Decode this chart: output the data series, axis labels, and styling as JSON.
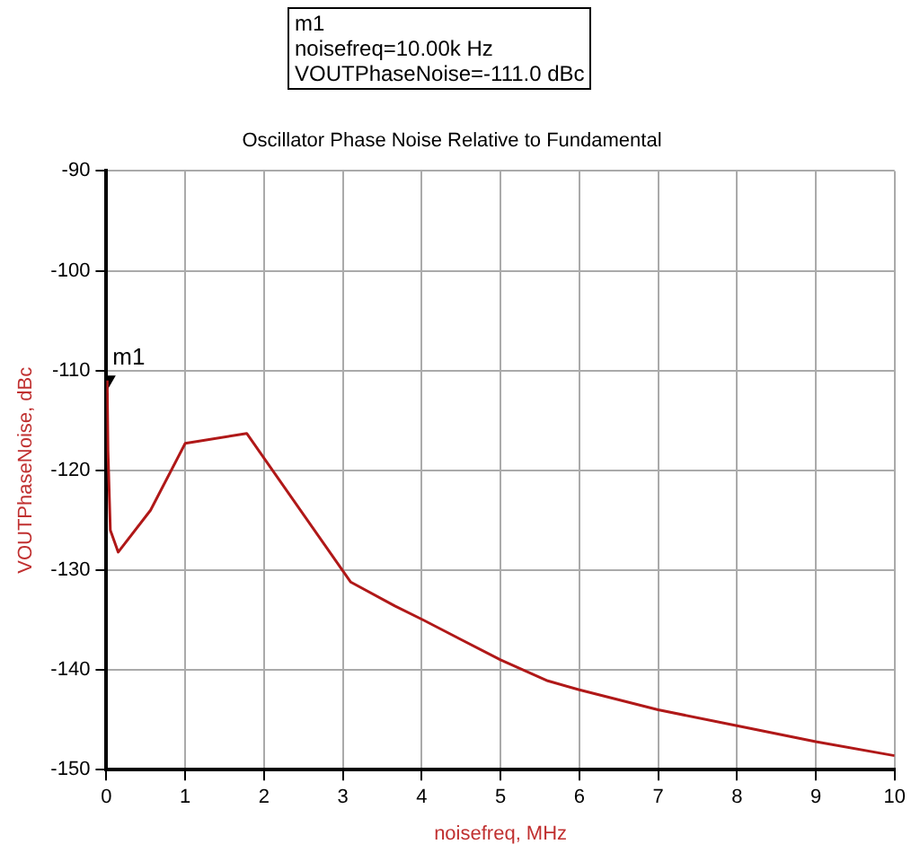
{
  "chart_data": {
    "type": "line",
    "title": "Oscillator Phase Noise Relative to Fundamental",
    "xlabel": "noisefreq, MHz",
    "ylabel": "VOUTPhaseNoise, dBc",
    "x": [
      0.01,
      0.02,
      0.05,
      0.15,
      0.56,
      1.0,
      1.78,
      3.1,
      3.66,
      4.02,
      5.0,
      5.6,
      6.0,
      7.0,
      8.0,
      9.0,
      10.0
    ],
    "series": [
      {
        "color": "#b01818",
        "values": [
          -111,
          -118,
          -126,
          -128.2,
          -124,
          -117.3,
          -116.3,
          -131.2,
          -133.6,
          -135,
          -139,
          -141.1,
          -142,
          -144,
          -145.6,
          -147.2,
          -148.6
        ]
      },
      {
        "type": "scatter",
        "x": [
          0.01
        ],
        "values": [
          -111
        ],
        "color": "#000000",
        "marker": "triangle"
      }
    ],
    "xlim": [
      0,
      10
    ],
    "xticks": [
      0,
      1,
      2,
      3,
      4,
      5,
      6,
      7,
      8,
      9,
      10
    ],
    "ylim": [
      -150,
      -90
    ],
    "yticks": [
      -150,
      -140,
      -130,
      -120,
      -110,
      -100,
      -90
    ],
    "grid": true,
    "legend": false,
    "marker": "none",
    "line_style": "solid",
    "annotations": [
      {
        "text": "m1",
        "x": 0.01,
        "y": -111
      },
      "m1\nnoisefreq=10.00k Hz\nVOUTPhaseNoise=-111.0 dBc"
    ]
  }
}
